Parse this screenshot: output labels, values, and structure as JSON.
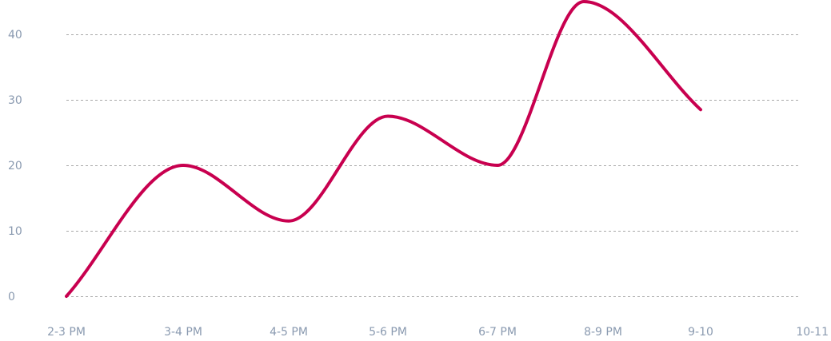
{
  "chart_data": {
    "type": "line",
    "categories": [
      "2-3 PM",
      "3-4 PM",
      "4-5 PM",
      "5-6 PM",
      "6-7 PM",
      "8-9 PM",
      "9-10",
      "10-11"
    ],
    "series": [
      {
        "values": [
          0,
          20,
          11.5,
          27.5,
          20,
          45,
          28.5,
          null
        ],
        "color": "#c8004f"
      }
    ],
    "title": "",
    "xlabel": "",
    "ylabel": "",
    "ylim": [
      0,
      40
    ],
    "yticks": [
      0,
      10,
      20,
      30,
      40
    ],
    "grid": true,
    "legend": "none"
  }
}
